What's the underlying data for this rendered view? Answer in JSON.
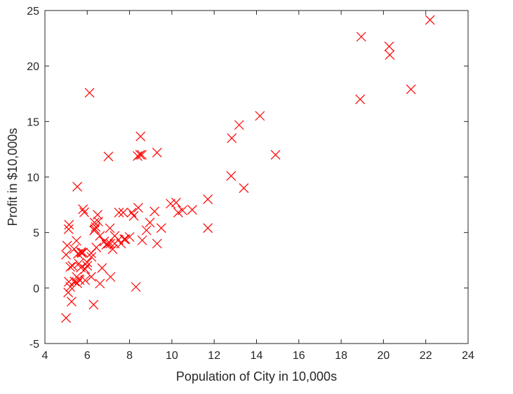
{
  "chart_data": {
    "type": "scatter",
    "title": "",
    "xlabel": "Population of City in 10,000s",
    "ylabel": "Profit in $10,000s",
    "xlim": [
      4,
      24
    ],
    "ylim": [
      -5,
      25
    ],
    "xticks": [
      "4",
      "6",
      "8",
      "10",
      "12",
      "14",
      "16",
      "18",
      "20",
      "22",
      "24"
    ],
    "yticks": [
      "-5",
      "0",
      "5",
      "10",
      "15",
      "20",
      "25"
    ],
    "grid": false,
    "legend": "none",
    "marker": "x",
    "color": "#ff0000",
    "series": [
      {
        "points": [
          [
            6.11,
            17.59
          ],
          [
            5.53,
            9.13
          ],
          [
            8.52,
            13.66
          ],
          [
            7.0,
            11.85
          ],
          [
            5.86,
            6.82
          ],
          [
            8.38,
            11.89
          ],
          [
            7.48,
            4.35
          ],
          [
            8.58,
            12.0
          ],
          [
            6.49,
            6.6
          ],
          [
            5.05,
            3.82
          ],
          [
            5.71,
            3.25
          ],
          [
            14.16,
            15.51
          ],
          [
            5.73,
            3.16
          ],
          [
            8.41,
            7.23
          ],
          [
            5.64,
            0.72
          ],
          [
            5.38,
            3.51
          ],
          [
            6.37,
            5.3
          ],
          [
            5.13,
            0.56
          ],
          [
            6.43,
            3.65
          ],
          [
            7.07,
            5.39
          ],
          [
            6.19,
            3.14
          ],
          [
            20.27,
            21.77
          ],
          [
            5.49,
            4.26
          ],
          [
            6.33,
            5.19
          ],
          [
            5.56,
            3.08
          ],
          [
            18.95,
            22.64
          ],
          [
            12.83,
            13.5
          ],
          [
            10.96,
            7.05
          ],
          [
            13.18,
            14.69
          ],
          [
            22.2,
            24.15
          ],
          [
            5.26,
            -1.22
          ],
          [
            6.52,
            5.99
          ],
          [
            7.0,
            4.0
          ],
          [
            9.94,
            7.6
          ],
          [
            8.96,
            5.9
          ],
          [
            6.19,
            1.01
          ],
          [
            9.18,
            6.9
          ],
          [
            5.53,
            0.43
          ],
          [
            6.34,
            5.9
          ],
          [
            7.75,
            4.4
          ],
          [
            5.7,
            1.84
          ],
          [
            5.14,
            5.7
          ],
          [
            5.12,
            5.3
          ],
          [
            6.0,
            2.3
          ],
          [
            10.5,
            7.0
          ],
          [
            9.3,
            12.2
          ],
          [
            13.4,
            9.0
          ],
          [
            5.2,
            0.1
          ],
          [
            7.2,
            3.5
          ],
          [
            5.6,
            0.8
          ],
          [
            5.8,
            7.1
          ],
          [
            11.7,
            8.0
          ],
          [
            5.9,
            1.7
          ],
          [
            6.7,
            1.8
          ],
          [
            7.6,
            4.0
          ],
          [
            8.2,
            6.5
          ],
          [
            18.9,
            17.0
          ],
          [
            21.3,
            17.9
          ],
          [
            20.3,
            21.0
          ],
          [
            14.9,
            12.0
          ],
          [
            12.8,
            10.1
          ],
          [
            11.7,
            5.4
          ],
          [
            8.3,
            0.1
          ],
          [
            6.3,
            -1.5
          ],
          [
            5.0,
            -2.7
          ],
          [
            5.3,
            2.0
          ],
          [
            5.0,
            3.0
          ],
          [
            5.5,
            1.0
          ],
          [
            6.0,
            2.0
          ],
          [
            7.1,
            1.0
          ],
          [
            5.4,
            0.6
          ],
          [
            5.6,
            2.2
          ],
          [
            5.8,
            3.2
          ],
          [
            6.2,
            2.8
          ],
          [
            6.8,
            4.2
          ],
          [
            7.3,
            4.0
          ],
          [
            7.8,
            4.4
          ],
          [
            8.0,
            4.6
          ],
          [
            8.6,
            4.3
          ],
          [
            9.3,
            4.0
          ],
          [
            9.5,
            5.4
          ],
          [
            8.8,
            5.2
          ],
          [
            7.7,
            6.8
          ],
          [
            10.2,
            7.7
          ],
          [
            10.3,
            6.8
          ],
          [
            6.4,
            5.5
          ],
          [
            7.3,
            4.7
          ],
          [
            8.1,
            6.8
          ],
          [
            5.1,
            -0.4
          ],
          [
            5.2,
            1.9
          ],
          [
            5.9,
            0.7
          ],
          [
            6.6,
            0.4
          ],
          [
            7.5,
            6.8
          ],
          [
            8.5,
            12.0
          ],
          [
            7.1,
            4.0
          ],
          [
            6.6,
            4.7
          ],
          [
            6.9,
            3.9
          ]
        ]
      }
    ]
  }
}
